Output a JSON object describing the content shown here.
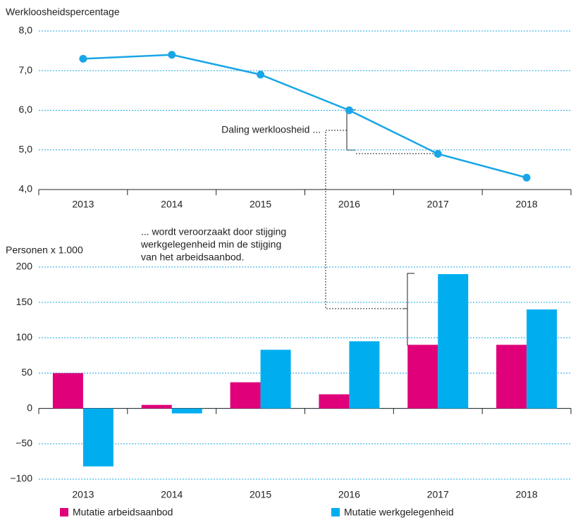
{
  "chart_data": [
    {
      "type": "line",
      "ylabel": "Werkloosheidspercentage",
      "categories": [
        "2013",
        "2014",
        "2015",
        "2016",
        "2017",
        "2018"
      ],
      "values": [
        7.3,
        7.4,
        6.9,
        6.0,
        4.9,
        4.3
      ],
      "color": "#1aa6e6",
      "ylim": [
        4,
        8
      ],
      "yticks": [
        {
          "value": 4,
          "label": "4,0"
        },
        {
          "value": 5,
          "label": "5,0"
        },
        {
          "value": 6,
          "label": "6,0"
        },
        {
          "value": 7,
          "label": "7,0"
        },
        {
          "value": 8,
          "label": "8,0"
        }
      ],
      "grid": true,
      "annotation": "Daling werkloosheid ..."
    },
    {
      "type": "bar",
      "ylabel": "Personen x 1.000",
      "categories": [
        "2013",
        "2014",
        "2015",
        "2016",
        "2017",
        "2018"
      ],
      "series": [
        {
          "name": "Mutatie arbeidsaanbod",
          "color": "#e0007a",
          "values": [
            50,
            5,
            37,
            20,
            90,
            90
          ]
        },
        {
          "name": "Mutatie werkgelegenheid",
          "color": "#00aeef",
          "values": [
            -82,
            -7,
            83,
            95,
            190,
            140
          ]
        }
      ],
      "ylim": [
        -100,
        200
      ],
      "yticks": [
        {
          "value": -100,
          "label": "−100"
        },
        {
          "value": -50,
          "label": "−50"
        },
        0,
        50,
        100,
        150,
        200
      ],
      "grid": true,
      "annotation": [
        "... wordt veroorzaakt door stijging",
        "werkgelegenheid min de stijging",
        "van het arbeidsaanbod."
      ]
    }
  ]
}
